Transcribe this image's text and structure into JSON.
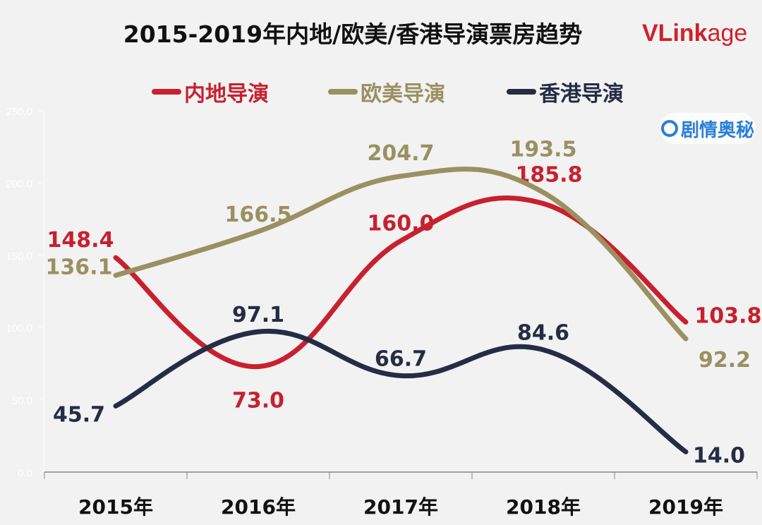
{
  "chart_data": {
    "type": "line",
    "title": "2015-2019年内地/欧美/香港导演票房趋势",
    "categories": [
      "2015年",
      "2016年",
      "2017年",
      "2018年",
      "2019年"
    ],
    "ylim": [
      0,
      250
    ],
    "yticks": [
      "0.0",
      "50.0",
      "100.0",
      "150.0",
      "200.0",
      "250.0"
    ],
    "legend_position": "top",
    "series": [
      {
        "name": "内地导演",
        "color": "#c8202e",
        "values": [
          148.4,
          73.0,
          160.0,
          185.8,
          103.8
        ],
        "labels": [
          "148.4",
          "73.0",
          "160.0",
          "185.8",
          "103.8"
        ]
      },
      {
        "name": "欧美导演",
        "color": "#9b9062",
        "values": [
          136.1,
          166.5,
          204.7,
          193.5,
          92.2
        ],
        "labels": [
          "136.1",
          "166.5",
          "204.7",
          "193.5",
          "92.2"
        ]
      },
      {
        "name": "香港导演",
        "color": "#252c45",
        "values": [
          45.7,
          97.1,
          66.7,
          84.6,
          14.0
        ],
        "labels": [
          "45.7",
          "97.1",
          "66.7",
          "84.6",
          "14.0"
        ]
      }
    ]
  },
  "logo": {
    "bold": "VLink",
    "light": "age"
  },
  "watermark": "剧情奥秘"
}
